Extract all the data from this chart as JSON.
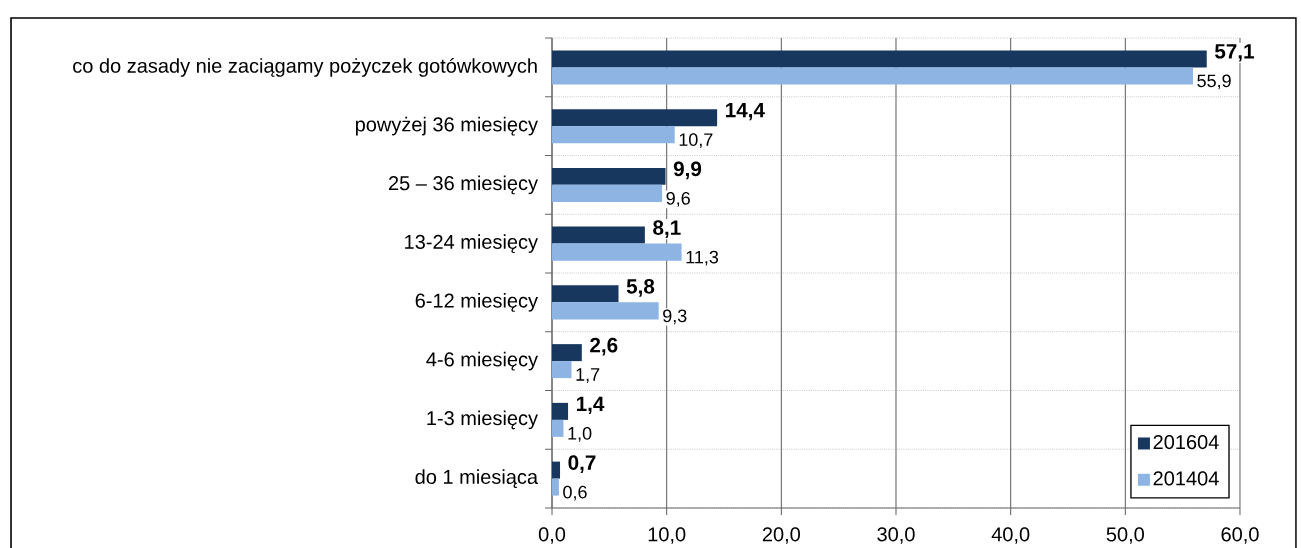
{
  "chart_data": {
    "type": "bar",
    "orientation": "horizontal",
    "categories": [
      "co do zasady nie zaciągamy pożyczek gotówkowych",
      "powyżej 36 miesięcy",
      "25 – 36 miesięcy",
      "13-24 miesięcy",
      "6-12 miesięcy",
      "4-6 miesięcy",
      "1-3 miesięcy",
      "do 1 miesiąca"
    ],
    "series": [
      {
        "name": "201604",
        "color": "#17375e",
        "values": [
          57.1,
          14.4,
          9.9,
          8.1,
          5.8,
          2.6,
          1.4,
          0.7
        ],
        "value_labels": [
          "57,1",
          "14,4",
          "9,9",
          "8,1",
          "5,8",
          "2,6",
          "1,4",
          "0,7"
        ]
      },
      {
        "name": "201404",
        "color": "#8eb4e3",
        "values": [
          55.9,
          10.7,
          9.6,
          11.3,
          9.3,
          1.7,
          1.0,
          0.6
        ],
        "value_labels": [
          "55,9",
          "10,7",
          "9,6",
          "11,3",
          "9,3",
          "1,7",
          "1,0",
          "0,6"
        ]
      }
    ],
    "xlim": [
      0,
      60
    ],
    "xticks": [
      {
        "value": 0,
        "label": "0,0"
      },
      {
        "value": 10,
        "label": "10,0"
      },
      {
        "value": 20,
        "label": "20,0"
      },
      {
        "value": 30,
        "label": "30,0"
      },
      {
        "value": 40,
        "label": "40,0"
      },
      {
        "value": 50,
        "label": "50,0"
      },
      {
        "value": 60,
        "label": "60,0"
      }
    ],
    "grid": true,
    "legend": "bottom right"
  }
}
